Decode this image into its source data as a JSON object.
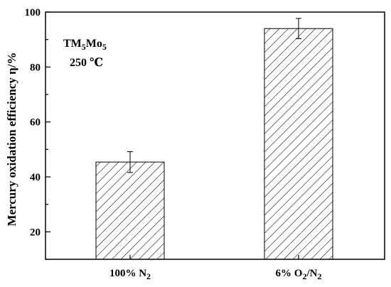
{
  "chart_data": {
    "type": "bar",
    "categories": [
      {
        "base": "100% N",
        "sub": "2",
        "rest": "",
        "sub2": ""
      },
      {
        "base": "6% O",
        "sub": "2",
        "rest": "/N",
        "sub2": "2"
      }
    ],
    "values": [
      45.4,
      94.0
    ],
    "errors": [
      3.8,
      3.7
    ],
    "ylabel": "Mercury oxidation efficiency η/%",
    "ylim": [
      10,
      100
    ],
    "yticks": [
      20,
      40,
      60,
      80,
      100
    ],
    "grid": false,
    "bar_fill": "hatched",
    "colors": {
      "bar_stroke": "#000000",
      "hatch": "#000000",
      "axis": "#000000"
    },
    "annotation": {
      "line1": {
        "base": "TM",
        "sub1": "5",
        "mid": "Mo",
        "sub2": "5"
      },
      "line2": "250 ℃"
    }
  }
}
